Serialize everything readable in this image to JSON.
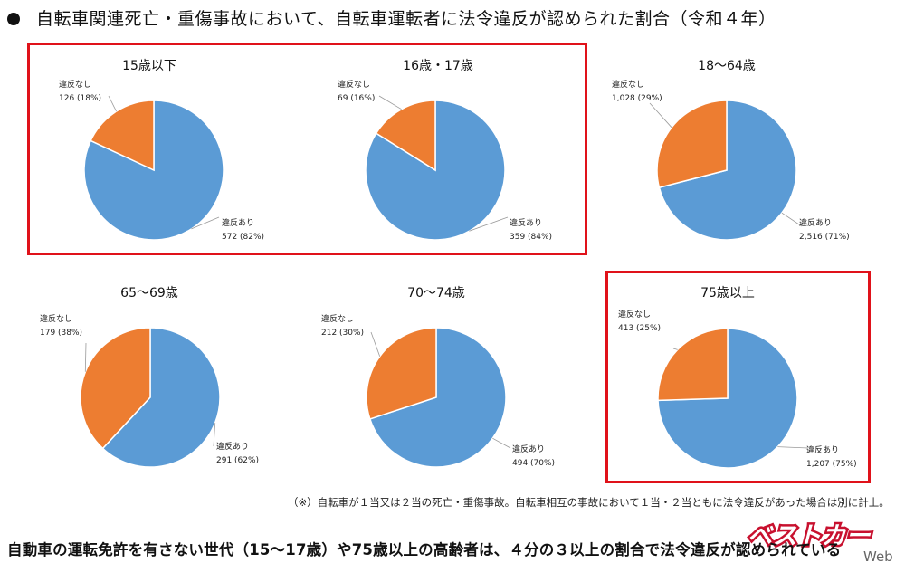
{
  "header": {
    "title": "自転車関連死亡・重傷事故において、自転車運転者に法令違反が認められた割合（令和４年）"
  },
  "colors": {
    "violation": "#5b9bd5",
    "no_violation": "#ed7d31",
    "highlight": "#e0121a"
  },
  "chart_data": [
    {
      "type": "pie",
      "title": "15歳以下",
      "slices": [
        {
          "label": "違反あり",
          "value": 572,
          "percent": 82
        },
        {
          "label": "違反なし",
          "value": 126,
          "percent": 18
        }
      ],
      "slice_labels": {
        "yes": "違反あり",
        "yes_value": "572 (82%)",
        "no": "違反なし",
        "no_value": "126 (18%)"
      }
    },
    {
      "type": "pie",
      "title": "16歳・17歳",
      "slices": [
        {
          "label": "違反あり",
          "value": 359,
          "percent": 84
        },
        {
          "label": "違反なし",
          "value": 69,
          "percent": 16
        }
      ],
      "slice_labels": {
        "yes": "違反あり",
        "yes_value": "359 (84%)",
        "no": "違反なし",
        "no_value": "69 (16%)"
      }
    },
    {
      "type": "pie",
      "title": "18〜64歳",
      "slices": [
        {
          "label": "違反あり",
          "value": 2516,
          "percent": 71
        },
        {
          "label": "違反なし",
          "value": 1028,
          "percent": 29
        }
      ],
      "slice_labels": {
        "yes": "違反あり",
        "yes_value": "2,516 (71%)",
        "no": "違反なし",
        "no_value": "1,028 (29%)"
      }
    },
    {
      "type": "pie",
      "title": "65〜69歳",
      "slices": [
        {
          "label": "違反あり",
          "value": 291,
          "percent": 62
        },
        {
          "label": "違反なし",
          "value": 179,
          "percent": 38
        }
      ],
      "slice_labels": {
        "yes": "違反あり",
        "yes_value": "291 (62%)",
        "no": "違反なし",
        "no_value": "179 (38%)"
      }
    },
    {
      "type": "pie",
      "title": "70〜74歳",
      "slices": [
        {
          "label": "違反あり",
          "value": 494,
          "percent": 70
        },
        {
          "label": "違反なし",
          "value": 212,
          "percent": 30
        }
      ],
      "slice_labels": {
        "yes": "違反あり",
        "yes_value": "494 (70%)",
        "no": "違反なし",
        "no_value": "212 (30%)"
      }
    },
    {
      "type": "pie",
      "title": "75歳以上",
      "slices": [
        {
          "label": "違反あり",
          "value": 1207,
          "percent": 75
        },
        {
          "label": "違反なし",
          "value": 413,
          "percent": 25
        }
      ],
      "slice_labels": {
        "yes": "違反あり",
        "yes_value": "1,207 (75%)",
        "no": "違反なし",
        "no_value": "413 (25%)"
      }
    }
  ],
  "footnote": "（※）自転車が１当又は２当の死亡・重傷事故。自転車相互の事故において１当・２当ともに法令違反があった場合は別に計上。",
  "conclusion": "自動車の運転免許を有さない世代（15〜17歳）や75歳以上の高齢者は、４分の３以上の割合で法令違反が認められている",
  "logo": {
    "text": "ベストカー",
    "sub": "Web"
  }
}
